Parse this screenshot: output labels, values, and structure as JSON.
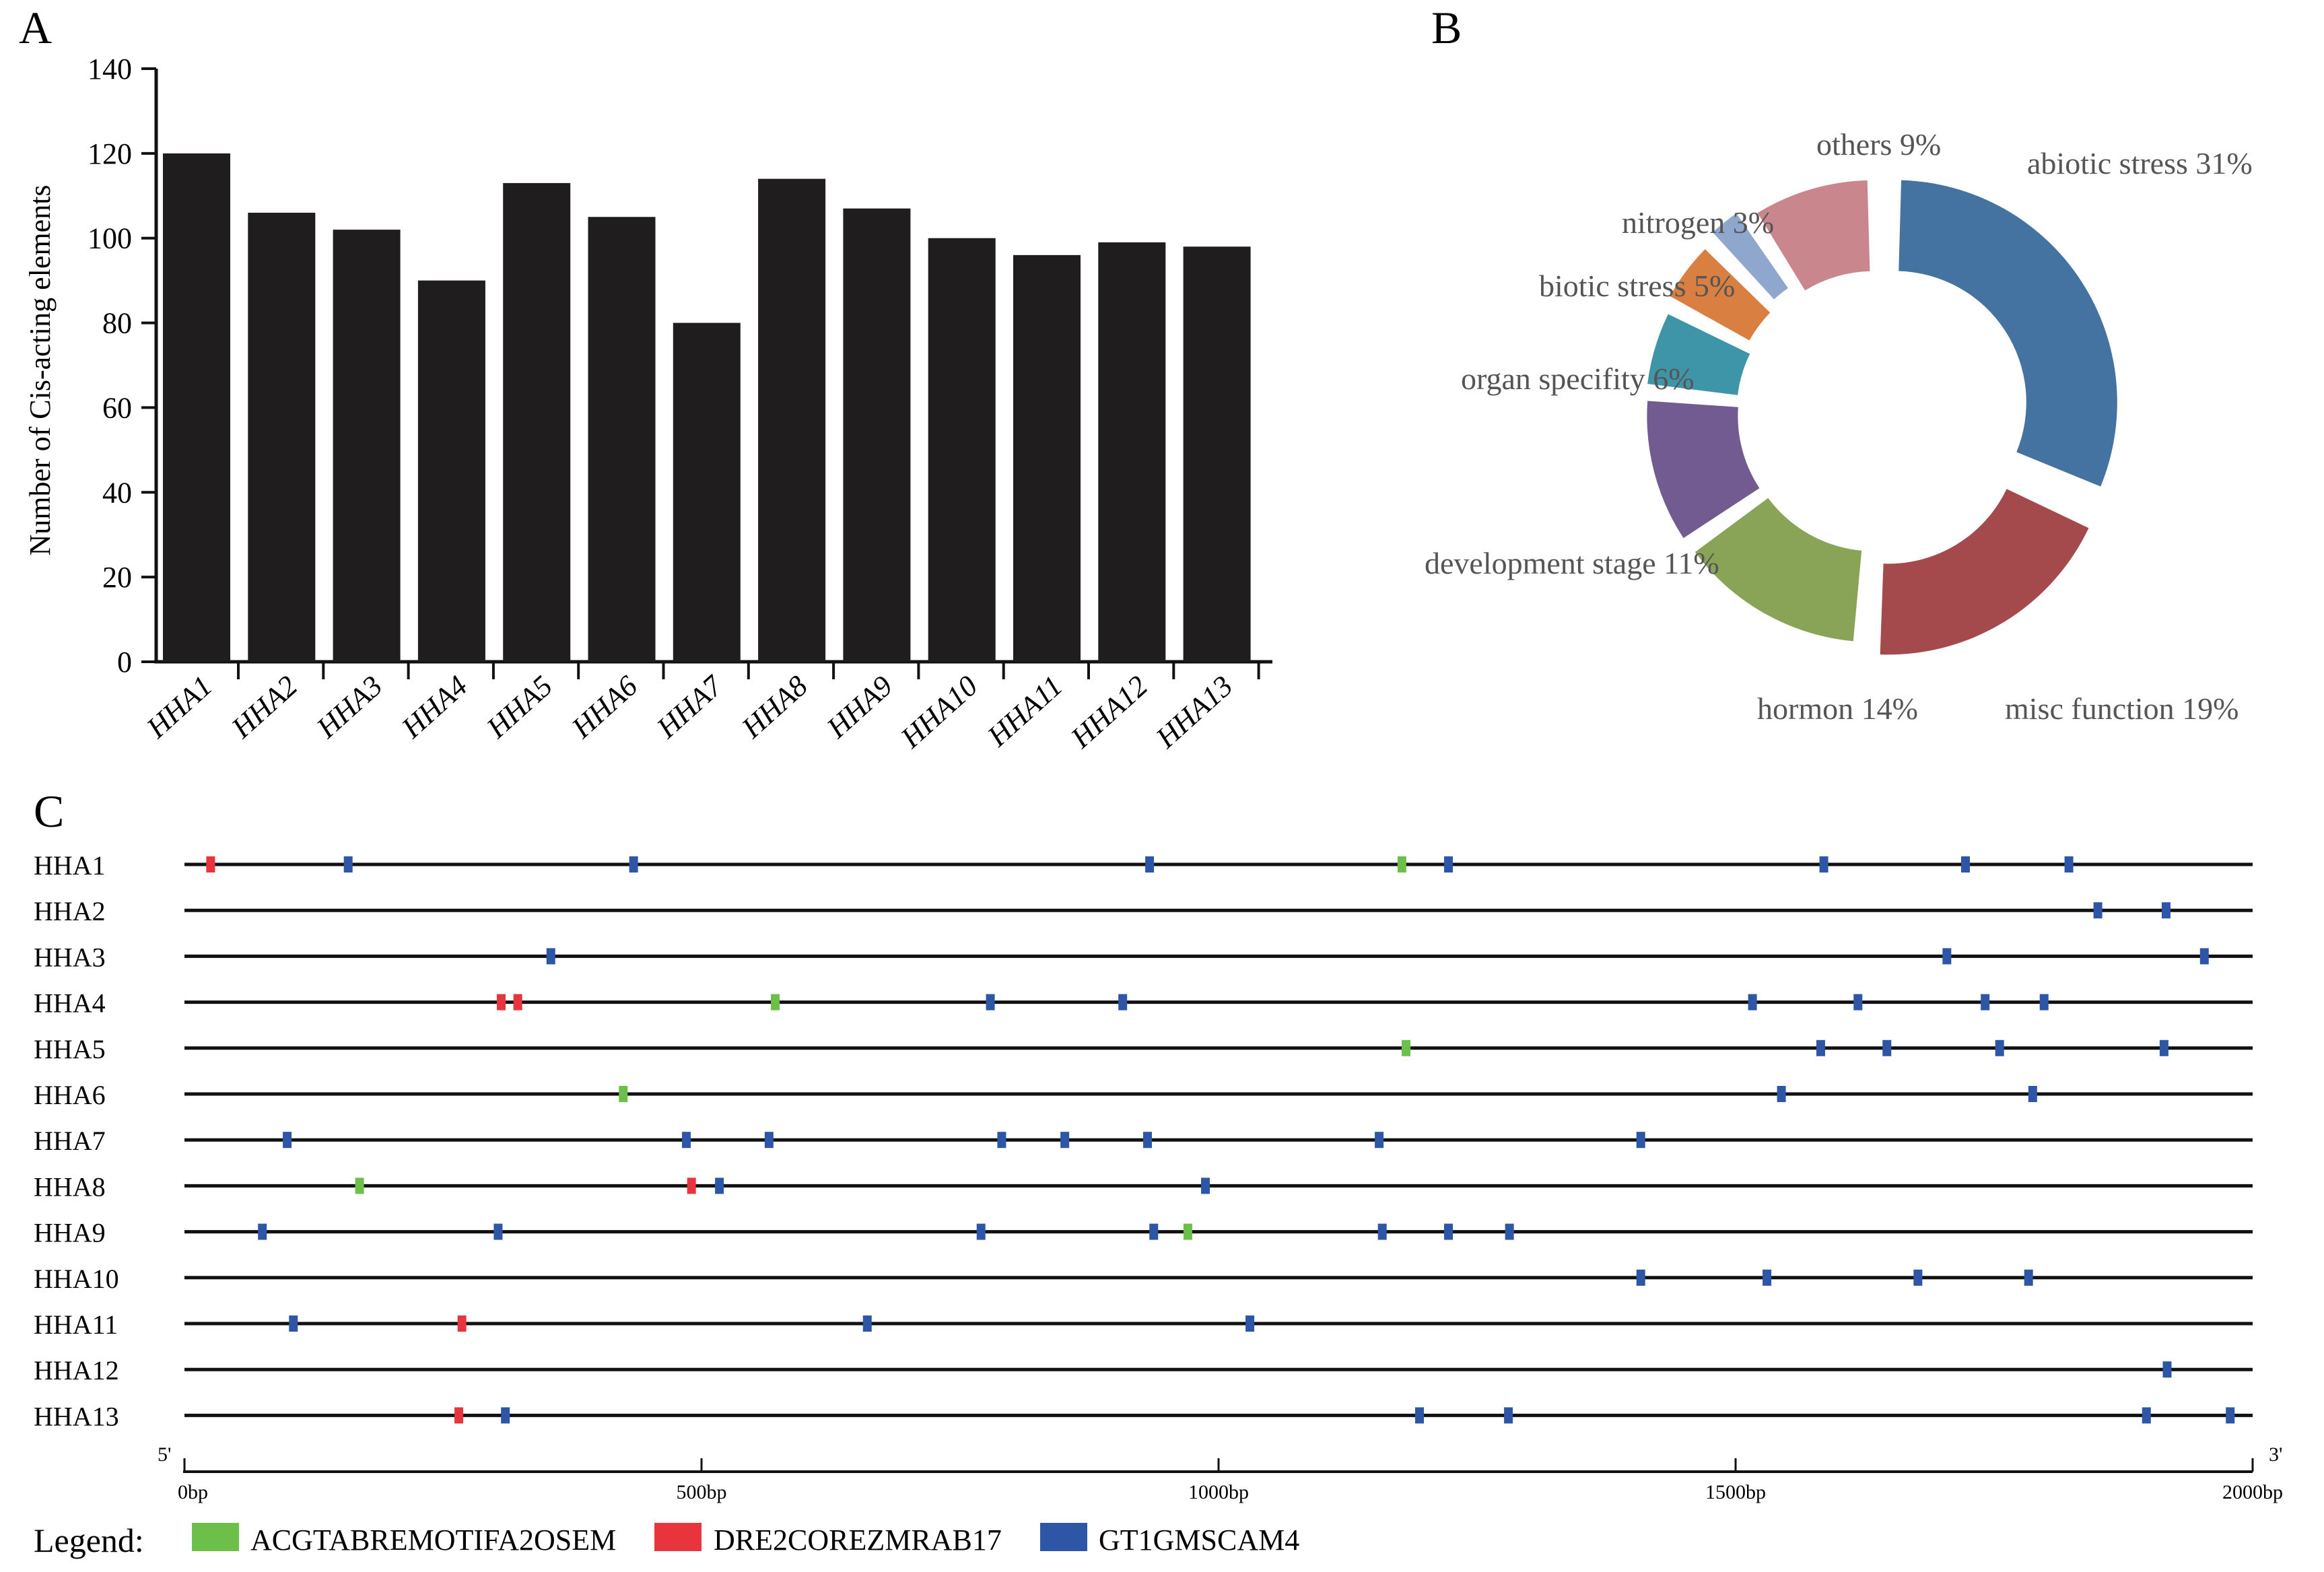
{
  "panel_labels": {
    "a": "A",
    "b": "B",
    "c": "C"
  },
  "chart_data": [
    {
      "panel": "A",
      "type": "bar",
      "title": "",
      "xlabel": "",
      "ylabel": "Number of Cis-acting elements",
      "ylim": [
        0,
        140
      ],
      "yticks": [
        0,
        20,
        40,
        60,
        80,
        100,
        120,
        140
      ],
      "ytick_labels": [
        "0",
        "20",
        "40",
        "60",
        "80",
        "100",
        "120",
        "140"
      ],
      "categories": [
        "HHA1",
        "HHA2",
        "HHA3",
        "HHA4",
        "HHA5",
        "HHA6",
        "HHA7",
        "HHA8",
        "HHA9",
        "HHA10",
        "HHA11",
        "HHA12",
        "HHA13"
      ],
      "values": [
        120,
        106,
        102,
        90,
        113,
        105,
        80,
        114,
        107,
        100,
        96,
        99,
        98
      ],
      "bar_color": "#1f1d1d"
    },
    {
      "panel": "B",
      "type": "pie",
      "style": "exploded donut",
      "slices": [
        {
          "label": "abiotic stress 31%",
          "value": 31,
          "color": "#4573a1"
        },
        {
          "label": "misc function 19%",
          "value": 19,
          "color": "#a4494c"
        },
        {
          "label": "hormon 14%",
          "value": 14,
          "color": "#8aa457"
        },
        {
          "label": "development stage 11%",
          "value": 11,
          "color": "#725b91"
        },
        {
          "label": "organ specifity 6%",
          "value": 6,
          "color": "#3f95a8"
        },
        {
          "label": "biotic stress 5%",
          "value": 5,
          "color": "#d97f42"
        },
        {
          "label": "nitrogen  3%",
          "value": 3,
          "color": "#8fa7cd"
        },
        {
          "label": "others 9%",
          "value": 9,
          "color": "#c9868d"
        }
      ]
    },
    {
      "panel": "C",
      "type": "scatter",
      "style": "promoter motif map",
      "xlim": [
        0,
        2000
      ],
      "xticks": [
        0,
        500,
        1000,
        1500,
        2000
      ],
      "xtick_labels": [
        "0bp",
        "500bp",
        "1000bp",
        "1500bp",
        "2000bp"
      ],
      "end5": "5'",
      "end3": "3'",
      "legend_title": "Legend:",
      "motifs": [
        {
          "name": "ACGTABREMOTIFA2OSEM",
          "color": "#6cc04a"
        },
        {
          "name": "DRE2COREZMRAB17",
          "color": "#e8343c"
        },
        {
          "name": "GT1GMSCAM4",
          "color": "#2e56a6"
        }
      ],
      "genes": [
        {
          "name": "HHA1",
          "sites": [
            [
              25,
              1
            ],
            [
              158,
              2
            ],
            [
              434,
              2
            ],
            [
              933,
              2
            ],
            [
              1177,
              0
            ],
            [
              1222,
              2
            ],
            [
              1585,
              2
            ],
            [
              1722,
              2
            ],
            [
              1822,
              2
            ]
          ]
        },
        {
          "name": "HHA2",
          "sites": [
            [
              1850,
              2
            ],
            [
              1916,
              2
            ]
          ]
        },
        {
          "name": "HHA3",
          "sites": [
            [
              354,
              2
            ],
            [
              1704,
              2
            ],
            [
              1953,
              2
            ]
          ]
        },
        {
          "name": "HHA4",
          "sites": [
            [
              306,
              1
            ],
            [
              322,
              1
            ],
            [
              571,
              0
            ],
            [
              779,
              2
            ],
            [
              907,
              2
            ],
            [
              1516,
              2
            ],
            [
              1618,
              2
            ],
            [
              1741,
              2
            ],
            [
              1798,
              2
            ]
          ]
        },
        {
          "name": "HHA5",
          "sites": [
            [
              1181,
              0
            ],
            [
              1582,
              2
            ],
            [
              1646,
              2
            ],
            [
              1755,
              2
            ],
            [
              1914,
              2
            ]
          ]
        },
        {
          "name": "HHA6",
          "sites": [
            [
              424,
              0
            ],
            [
              1544,
              2
            ],
            [
              1787,
              2
            ]
          ]
        },
        {
          "name": "HHA7",
          "sites": [
            [
              99,
              2
            ],
            [
              485,
              2
            ],
            [
              565,
              2
            ],
            [
              790,
              2
            ],
            [
              851,
              2
            ],
            [
              931,
              2
            ],
            [
              1155,
              2
            ],
            [
              1408,
              2
            ]
          ]
        },
        {
          "name": "HHA8",
          "sites": [
            [
              169,
              0
            ],
            [
              490,
              1
            ],
            [
              517,
              2
            ],
            [
              987,
              2
            ]
          ]
        },
        {
          "name": "HHA9",
          "sites": [
            [
              75,
              2
            ],
            [
              303,
              2
            ],
            [
              770,
              2
            ],
            [
              937,
              2
            ],
            [
              970,
              0
            ],
            [
              1158,
              2
            ],
            [
              1222,
              2
            ],
            [
              1281,
              2
            ]
          ]
        },
        {
          "name": "HHA10",
          "sites": [
            [
              1408,
              2
            ],
            [
              1530,
              2
            ],
            [
              1676,
              2
            ],
            [
              1783,
              2
            ]
          ]
        },
        {
          "name": "HHA11",
          "sites": [
            [
              105,
              2
            ],
            [
              268,
              1
            ],
            [
              660,
              2
            ],
            [
              1030,
              2
            ]
          ]
        },
        {
          "name": "HHA12",
          "sites": [
            [
              1917,
              2
            ]
          ]
        },
        {
          "name": "HHA13",
          "sites": [
            [
              265,
              1
            ],
            [
              310,
              2
            ],
            [
              1194,
              2
            ],
            [
              1280,
              2
            ],
            [
              1897,
              2
            ],
            [
              1978,
              2
            ]
          ]
        }
      ]
    }
  ]
}
